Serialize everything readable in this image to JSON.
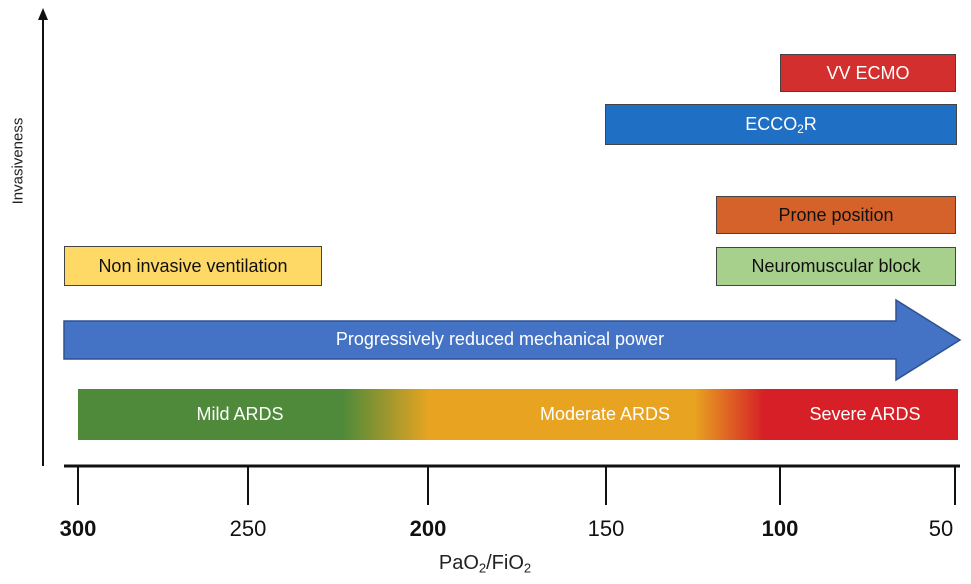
{
  "axis": {
    "y_label": "Invasiveness",
    "x_label_main": "PaO",
    "x_label_sub1": "2",
    "x_label_sep": "/FiO",
    "x_label_sub2": "2",
    "ticks": [
      {
        "label": "300",
        "bold": true
      },
      {
        "label": "250",
        "bold": false
      },
      {
        "label": "200",
        "bold": true
      },
      {
        "label": "150",
        "bold": false
      },
      {
        "label": "100",
        "bold": true
      },
      {
        "label": "50",
        "bold": false
      }
    ]
  },
  "interventions": {
    "vv_ecmo": {
      "label": "VV ECMO",
      "color": "#d32f2f"
    },
    "ecco2r": {
      "label_main": "ECCO",
      "label_sub": "2",
      "label_tail": "R",
      "color": "#1f6fc4"
    },
    "prone": {
      "label": "Prone position",
      "color": "#d4622a"
    },
    "neuromuscular": {
      "label": "Neuromuscular block",
      "color": "#a8d08d"
    },
    "niv": {
      "label": "Non invasive ventilation",
      "color": "#ffd966"
    }
  },
  "arrow": {
    "label": "Progressively reduced mechanical power",
    "color": "#4472c4"
  },
  "severity": {
    "mild": "Mild ARDS",
    "moderate": "Moderate ARDS",
    "severe": "Severe ARDS",
    "colors": {
      "mild": "#4e8a3a",
      "moderate": "#e8a421",
      "severe": "#d61f26"
    }
  }
}
